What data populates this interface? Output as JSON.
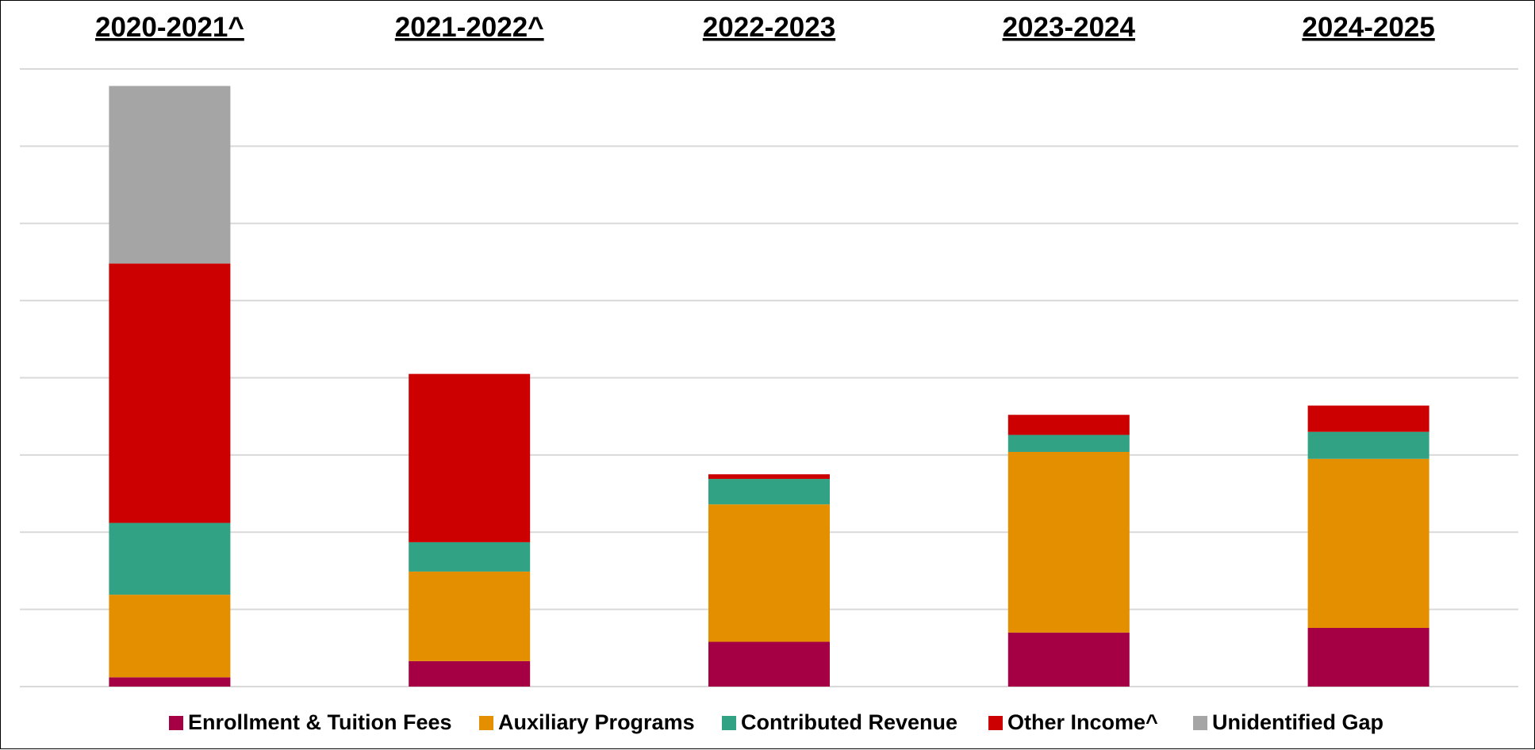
{
  "chart_data": {
    "type": "bar",
    "stacked": true,
    "categories": [
      "2020-2021^",
      "2021-2022^",
      "2022-2023",
      "2023-2024",
      "2024-2025"
    ],
    "category_label_style": "bold underlined, above plot",
    "series": [
      {
        "name": "Enrollment & Tuition Fees",
        "color": "#A50044",
        "values": [
          0.12,
          0.33,
          0.58,
          0.7,
          0.76
        ]
      },
      {
        "name": "Auxiliary Programs",
        "color": "#E38F00",
        "values": [
          1.07,
          1.16,
          1.78,
          2.34,
          2.19
        ]
      },
      {
        "name": "Contributed Revenue",
        "color": "#31A283",
        "values": [
          0.93,
          0.38,
          0.33,
          0.22,
          0.35
        ]
      },
      {
        "name": "Other Income^",
        "color": "#CC0000",
        "values": [
          3.36,
          2.18,
          0.06,
          0.26,
          0.34
        ]
      },
      {
        "name": "Unidentified Gap",
        "color": "#A5A5A5",
        "values": [
          2.3,
          0,
          0,
          0,
          0
        ]
      }
    ],
    "ylim": [
      0,
      8
    ],
    "y_tick_labels_shown": false,
    "grid": true,
    "grid_color": "#D9D9D9",
    "legend_position": "bottom"
  }
}
